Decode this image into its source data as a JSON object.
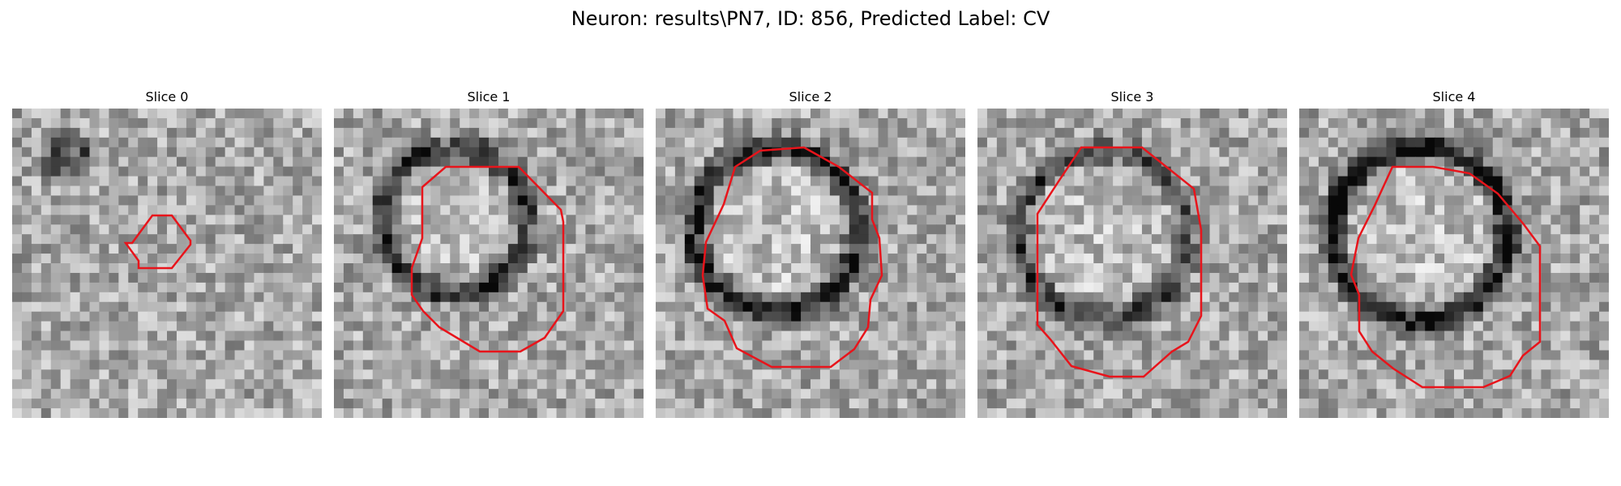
{
  "figure": {
    "title": "Neuron: results\\PN7, ID: 856, Predicted Label: CV"
  },
  "panels": [
    {
      "title": "Slice 0",
      "seed": 11,
      "contour_color": "#e8141b"
    },
    {
      "title": "Slice 1",
      "seed": 23,
      "contour_color": "#e8141b"
    },
    {
      "title": "Slice 2",
      "seed": 37,
      "contour_color": "#e8141b"
    },
    {
      "title": "Slice 3",
      "seed": 53,
      "contour_color": "#e8141b"
    },
    {
      "title": "Slice 4",
      "seed": 71,
      "contour_color": "#e8141b"
    }
  ]
}
